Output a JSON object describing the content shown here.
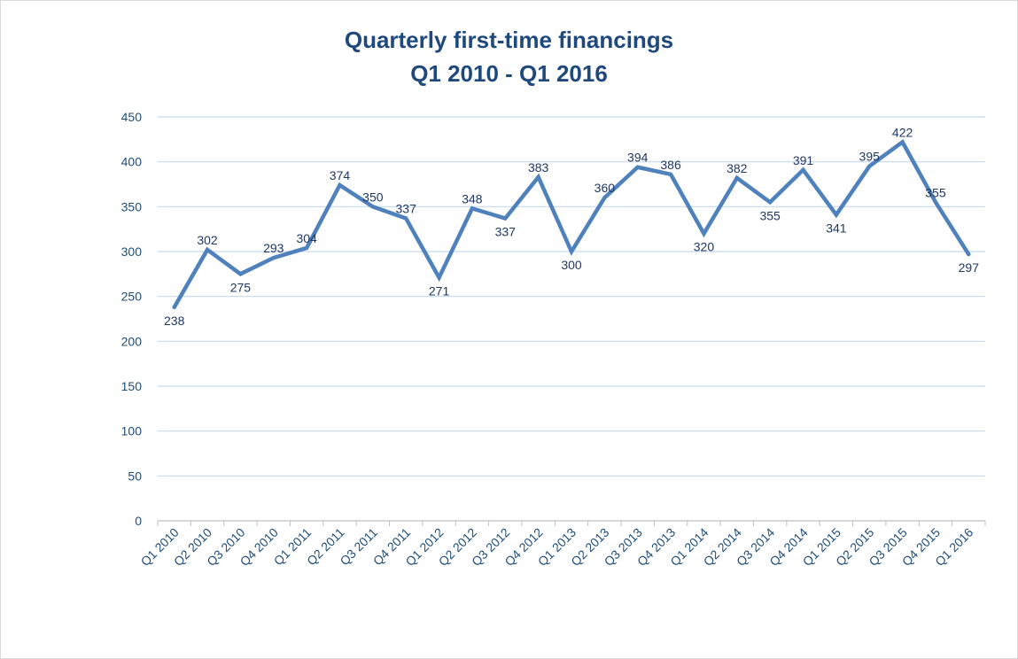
{
  "chart_data": {
    "type": "line",
    "title": "Quarterly first-time  financings",
    "subtitle": "Q1 2010 - Q1 2016",
    "xlabel": "",
    "ylabel": "",
    "ylim": [
      0,
      450
    ],
    "yticks": [
      "0",
      "50",
      "100",
      "150",
      "200",
      "250",
      "300",
      "350",
      "400",
      "450"
    ],
    "grid": true,
    "legend": "none",
    "line_color": "#4f81bd",
    "categories": [
      "Q1 2010",
      "Q2 2010",
      "Q3 2010",
      "Q4 2010",
      "Q1 2011",
      "Q2 2011",
      "Q3 2011",
      "Q4 2011",
      "Q1 2012",
      "Q2 2012",
      "Q3 2012",
      "Q4 2012",
      "Q1 2013",
      "Q2 2013",
      "Q3 2013",
      "Q4 2013",
      "Q1 2014",
      "Q2 2014",
      "Q3 2014",
      "Q4 2014",
      "Q1 2015",
      "Q2 2015",
      "Q3 2015",
      "Q4 2015",
      "Q1 2016"
    ],
    "values": [
      238,
      302,
      275,
      293,
      304,
      374,
      350,
      337,
      271,
      348,
      337,
      383,
      300,
      360,
      394,
      386,
      320,
      382,
      355,
      391,
      341,
      395,
      422,
      355,
      297
    ]
  }
}
